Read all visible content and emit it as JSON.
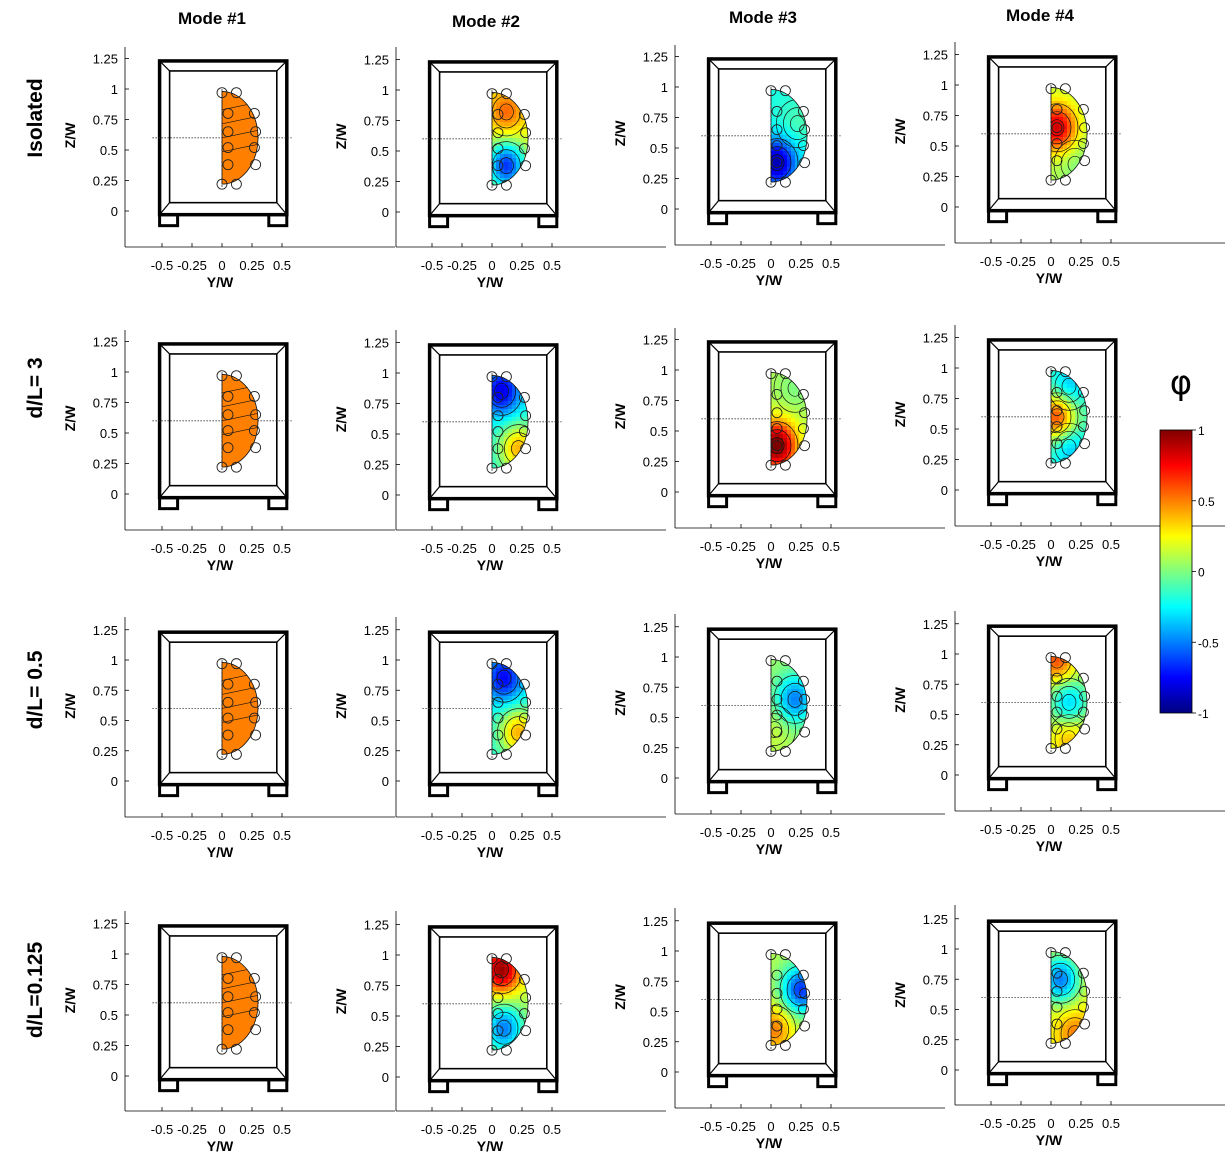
{
  "figure": {
    "column_titles": [
      "Mode #1",
      "Mode #2",
      "Mode #3",
      "Mode #4"
    ],
    "row_labels": [
      "Isolated",
      "d/L= 3",
      "d/L= 0.5",
      "d/L=0.125"
    ]
  },
  "colorbar": {
    "symbol": "φ",
    "range": [
      -1,
      1
    ],
    "ticks": [
      1,
      0.5,
      0,
      -0.5,
      -1
    ],
    "colormap": [
      "#00007f",
      "#0000ff",
      "#007fff",
      "#00ffff",
      "#7fff7f",
      "#ffff00",
      "#ff7f00",
      "#ff0000",
      "#7f0000"
    ]
  },
  "chart_data": {
    "type": "heatmap",
    "xlabel": "Y/W",
    "ylabel": "Z/W",
    "xticks": [
      -0.5,
      -0.25,
      0,
      0.25,
      0.5
    ],
    "xtick_labels": [
      "-0.5",
      "-0.25",
      "0",
      "0.25",
      "0.5"
    ],
    "yticks": [
      0,
      0.25,
      0.5,
      0.75,
      1,
      1.25
    ],
    "yrange": [
      -0.25,
      1.45
    ],
    "xrange": [
      -0.8,
      0.55
    ],
    "reference_line_z": 0.6,
    "sensors": [
      [
        0,
        0.97
      ],
      [
        0.12,
        0.97
      ],
      [
        0.27,
        0.8
      ],
      [
        0.05,
        0.8
      ],
      [
        0.05,
        0.65
      ],
      [
        0.28,
        0.65
      ],
      [
        0.05,
        0.52
      ],
      [
        0.27,
        0.52
      ],
      [
        0.05,
        0.38
      ],
      [
        0.28,
        0.38
      ],
      [
        0.12,
        0.22
      ],
      [
        0,
        0.22
      ]
    ],
    "modes": [
      [
        {
          "lobes": [],
          "base": 0.5
        },
        {
          "lobes": [
            [
              0.12,
              0.38,
              -0.85
            ],
            [
              0.12,
              0.82,
              0.35
            ]
          ],
          "base": 0.2
        },
        {
          "lobes": [
            [
              0.05,
              0.38,
              -0.7
            ],
            [
              0.22,
              0.7,
              0.1
            ]
          ],
          "base": -0.2
        },
        {
          "lobes": [
            [
              0.05,
              0.65,
              0.75
            ],
            [
              0.2,
              0.35,
              -0.1
            ]
          ],
          "base": 0.1
        }
      ],
      [
        {
          "lobes": [],
          "base": 0.5
        },
        {
          "lobes": [
            [
              0.08,
              0.85,
              -0.6
            ],
            [
              0.22,
              0.38,
              0.6
            ]
          ],
          "base": -0.2
        },
        {
          "lobes": [
            [
              0.05,
              0.38,
              0.95
            ],
            [
              0.2,
              0.85,
              -0.1
            ]
          ],
          "base": 0.1
        },
        {
          "lobes": [
            [
              0.05,
              0.6,
              0.75
            ],
            [
              0.15,
              0.85,
              -0.3
            ],
            [
              0.15,
              0.35,
              -0.3
            ]
          ],
          "base": -0.1
        }
      ],
      [
        {
          "lobes": [],
          "base": 0.5
        },
        {
          "lobes": [
            [
              0.1,
              0.85,
              -0.55
            ],
            [
              0.22,
              0.4,
              0.6
            ]
          ],
          "base": -0.2
        },
        {
          "lobes": [
            [
              0.2,
              0.65,
              -0.55
            ],
            [
              0.03,
              0.4,
              0.1
            ]
          ],
          "base": 0.05
        },
        {
          "lobes": [
            [
              0.15,
              0.6,
              -0.45
            ],
            [
              0.05,
              0.95,
              0.5
            ],
            [
              0.15,
              0.3,
              0.3
            ]
          ],
          "base": 0.1
        }
      ],
      [
        {
          "lobes": [],
          "base": 0.5
        },
        {
          "lobes": [
            [
              0.08,
              0.88,
              0.85
            ],
            [
              0.1,
              0.4,
              -0.6
            ]
          ],
          "base": 0.1
        },
        {
          "lobes": [
            [
              0.25,
              0.68,
              -0.75
            ],
            [
              0.03,
              0.35,
              0.4
            ]
          ],
          "base": 0.1
        },
        {
          "lobes": [
            [
              0.08,
              0.75,
              -0.7
            ],
            [
              0.2,
              0.3,
              0.3
            ]
          ],
          "base": 0.2
        }
      ]
    ]
  }
}
